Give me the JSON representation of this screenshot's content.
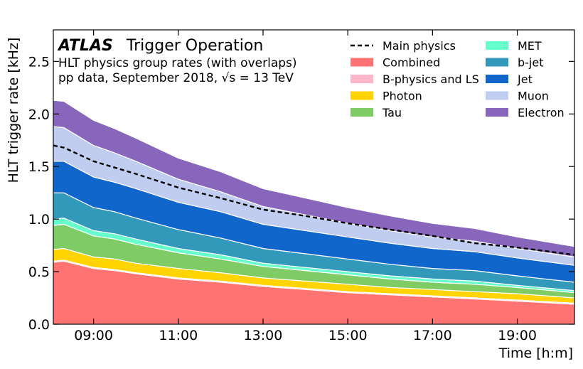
{
  "chart_data": {
    "type": "area",
    "stacked": true,
    "experiment": "ATLAS",
    "title": "Trigger Operation",
    "subtitle_lines": [
      "HLT physics group rates (with overlaps)",
      "pp data, September 2018, √s = 13 TeV"
    ],
    "xlabel": "Time [h:m]",
    "ylabel": "HLT trigger rate [kHz]",
    "xlim": [
      8.05,
      20.35
    ],
    "ylim": [
      0,
      2.8
    ],
    "x_ticks": [
      9,
      11,
      13,
      15,
      17,
      19
    ],
    "x_tick_labels": [
      "09:00",
      "11:00",
      "13:00",
      "15:00",
      "17:00",
      "19:00"
    ],
    "y_ticks": [
      0,
      0.5,
      1.0,
      1.5,
      2.0,
      2.5
    ],
    "y_tick_labels": [
      "0.0",
      "0.5",
      "1.0",
      "1.5",
      "2.0",
      "2.5"
    ],
    "grid": false,
    "legend_position": "top-right",
    "x": [
      8.05,
      8.3,
      9.0,
      9.5,
      10.0,
      11.0,
      12.0,
      13.0,
      14.0,
      15.0,
      16.0,
      17.0,
      18.0,
      19.0,
      20.35
    ],
    "series": [
      {
        "name": "Combined",
        "color": "#ff7373",
        "values": [
          0.59,
          0.6,
          0.53,
          0.51,
          0.48,
          0.43,
          0.4,
          0.36,
          0.33,
          0.3,
          0.28,
          0.26,
          0.24,
          0.22,
          0.19
        ]
      },
      {
        "name": "B-physics and LS",
        "color": "#ffb6c8",
        "values": [
          0.01,
          0.01,
          0.01,
          0.01,
          0.01,
          0.01,
          0.01,
          0.01,
          0.01,
          0.01,
          0.01,
          0.01,
          0.01,
          0.01,
          0.01
        ]
      },
      {
        "name": "Photon",
        "color": "#ffd400",
        "values": [
          0.11,
          0.11,
          0.1,
          0.1,
          0.09,
          0.09,
          0.08,
          0.07,
          0.07,
          0.07,
          0.06,
          0.06,
          0.06,
          0.06,
          0.05
        ]
      },
      {
        "name": "Tau",
        "color": "#7fcc66",
        "values": [
          0.23,
          0.23,
          0.2,
          0.19,
          0.18,
          0.15,
          0.13,
          0.11,
          0.1,
          0.09,
          0.08,
          0.07,
          0.07,
          0.06,
          0.05
        ]
      },
      {
        "name": "MET",
        "color": "#66ffcc",
        "values": [
          0.06,
          0.06,
          0.05,
          0.05,
          0.05,
          0.04,
          0.04,
          0.03,
          0.03,
          0.03,
          0.03,
          0.03,
          0.03,
          0.02,
          0.02
        ]
      },
      {
        "name": "b-jet",
        "color": "#3399bb",
        "values": [
          0.25,
          0.24,
          0.22,
          0.21,
          0.2,
          0.18,
          0.16,
          0.14,
          0.13,
          0.12,
          0.11,
          0.1,
          0.1,
          0.09,
          0.08
        ]
      },
      {
        "name": "Jet",
        "color": "#1166cc",
        "values": [
          0.3,
          0.3,
          0.29,
          0.28,
          0.28,
          0.26,
          0.25,
          0.23,
          0.22,
          0.21,
          0.2,
          0.19,
          0.18,
          0.17,
          0.16
        ]
      },
      {
        "name": "Muon",
        "color": "#c0cdf0",
        "values": [
          0.33,
          0.32,
          0.3,
          0.28,
          0.26,
          0.22,
          0.19,
          0.17,
          0.15,
          0.13,
          0.12,
          0.11,
          0.1,
          0.09,
          0.08
        ]
      },
      {
        "name": "Electron",
        "color": "#8866bb",
        "values": [
          0.25,
          0.25,
          0.24,
          0.23,
          0.22,
          0.2,
          0.19,
          0.17,
          0.16,
          0.15,
          0.14,
          0.13,
          0.12,
          0.11,
          0.1
        ]
      }
    ],
    "main_physics": {
      "name": "Main physics",
      "style": "dashed",
      "color": "#000000",
      "values": [
        1.7,
        1.68,
        1.55,
        1.49,
        1.43,
        1.3,
        1.2,
        1.09,
        1.03,
        0.96,
        0.9,
        0.84,
        0.77,
        0.73,
        0.66
      ]
    },
    "legend_order": [
      "Main physics",
      "Combined",
      "B-physics and LS",
      "Photon",
      "Tau",
      "MET",
      "b-jet",
      "Jet",
      "Muon",
      "Electron"
    ]
  }
}
